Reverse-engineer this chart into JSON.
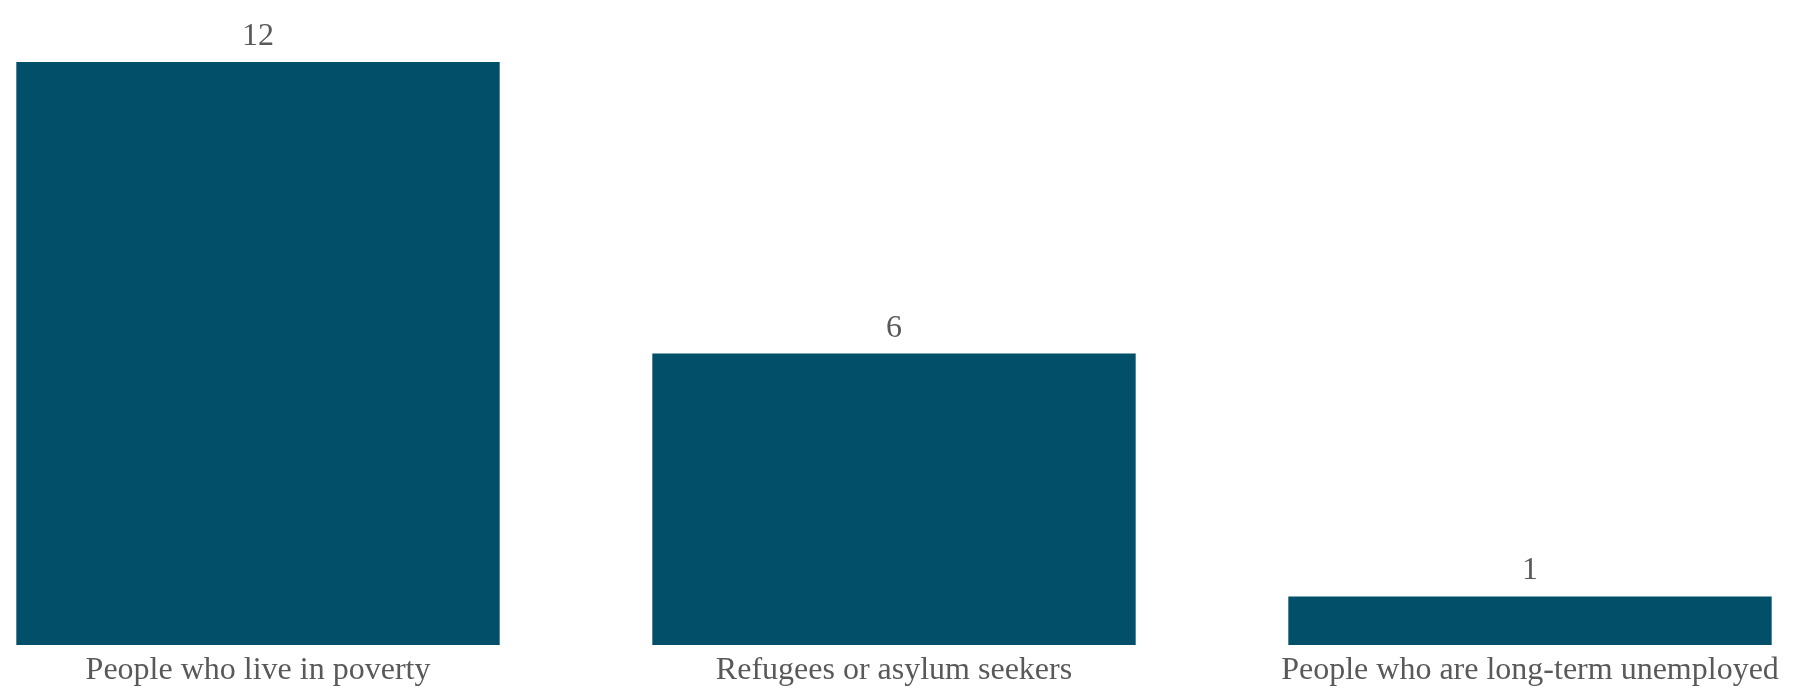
{
  "chart_data": {
    "type": "bar",
    "categories": [
      "People who live in poverty",
      "Refugees or asylum seekers",
      "People who are long-term unemployed"
    ],
    "values": [
      12,
      6,
      1
    ],
    "color": "#024f6a",
    "data_labels": true,
    "tick_labels": "x"
  }
}
